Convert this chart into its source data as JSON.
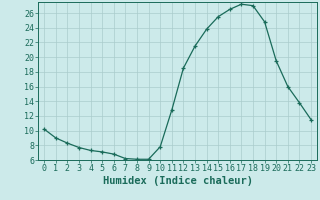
{
  "x": [
    0,
    1,
    2,
    3,
    4,
    5,
    6,
    7,
    8,
    9,
    10,
    11,
    12,
    13,
    14,
    15,
    16,
    17,
    18,
    19,
    20,
    21,
    22,
    23
  ],
  "y": [
    10.2,
    9.0,
    8.3,
    7.7,
    7.3,
    7.1,
    6.8,
    6.2,
    6.1,
    6.1,
    7.8,
    12.8,
    18.5,
    21.5,
    23.8,
    25.5,
    26.5,
    27.2,
    27.0,
    24.8,
    19.5,
    16.0,
    13.8,
    11.5
  ],
  "line_color": "#1a6b5a",
  "marker": "+",
  "bg_color": "#cceaea",
  "grid_color": "#aacccc",
  "xlabel": "Humidex (Indice chaleur)",
  "ylim": [
    6,
    27
  ],
  "ylim_top": 27.5,
  "yticks": [
    6,
    8,
    10,
    12,
    14,
    16,
    18,
    20,
    22,
    24,
    26
  ],
  "xticks": [
    0,
    1,
    2,
    3,
    4,
    5,
    6,
    7,
    8,
    9,
    10,
    11,
    12,
    13,
    14,
    15,
    16,
    17,
    18,
    19,
    20,
    21,
    22,
    23
  ],
  "xlabel_fontsize": 7.5,
  "tick_fontsize": 6.0
}
